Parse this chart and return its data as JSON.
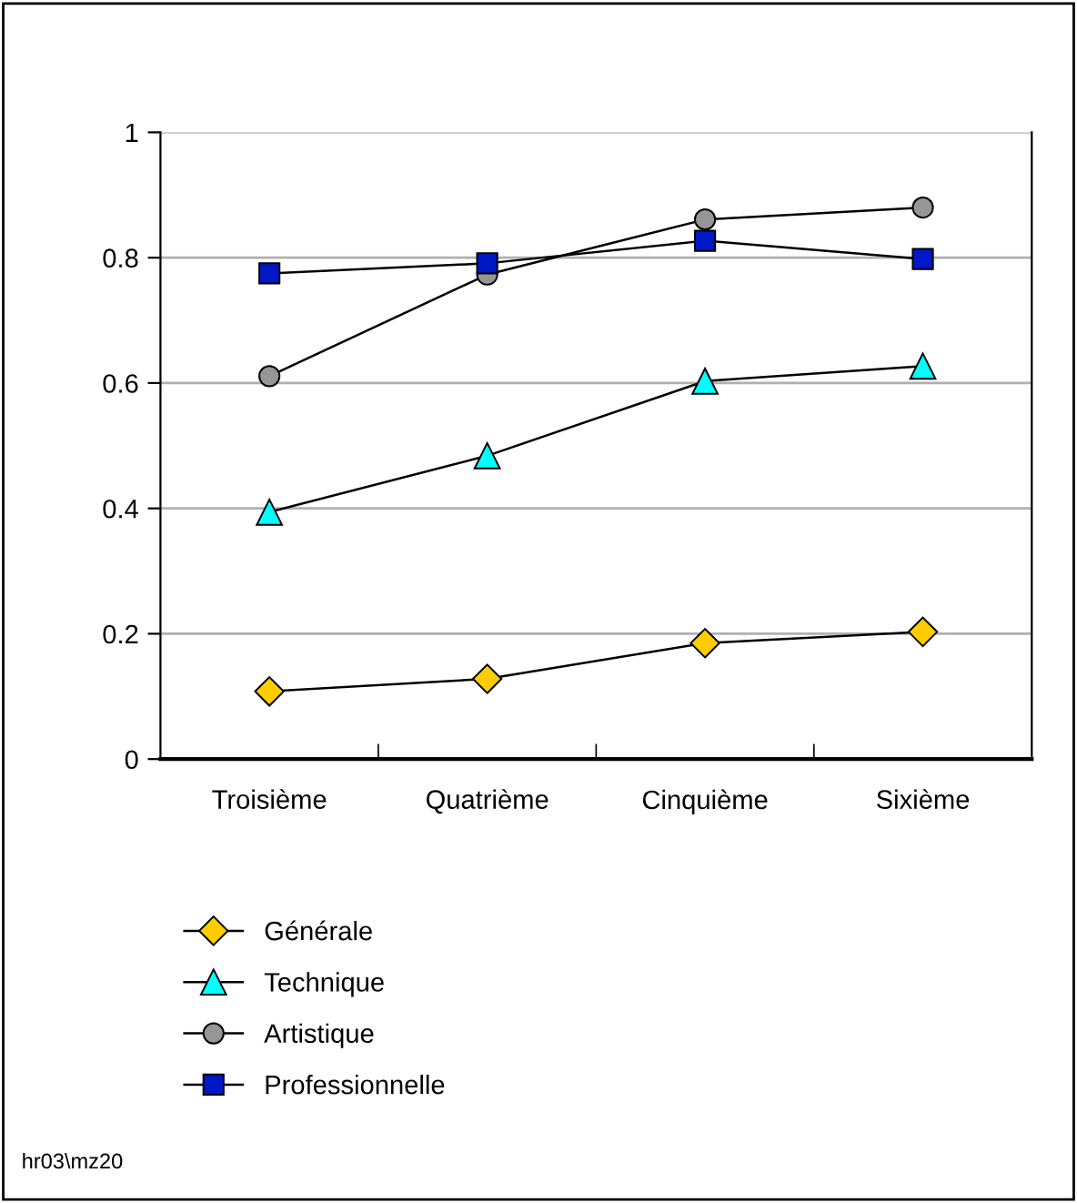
{
  "chart_data": {
    "type": "line",
    "categories": [
      "Troisième",
      "Quatrième",
      "Cinquième",
      "Sixième"
    ],
    "series": [
      {
        "name": "Générale",
        "color": "#ffcc00",
        "marker": "diamond",
        "values": [
          0.108,
          0.128,
          0.185,
          0.203
        ]
      },
      {
        "name": "Technique",
        "color": "#00ffff",
        "marker": "triangle",
        "values": [
          0.394,
          0.484,
          0.603,
          0.627
        ]
      },
      {
        "name": "Artistique",
        "color": "#969696",
        "marker": "circle",
        "values": [
          0.611,
          0.773,
          0.861,
          0.88
        ]
      },
      {
        "name": "Professionnelle",
        "color": "#0018c8",
        "marker": "square",
        "values": [
          0.775,
          0.791,
          0.827,
          0.798
        ]
      }
    ],
    "ylim": [
      0,
      1
    ],
    "yticks": [
      0,
      0.2,
      0.4,
      0.6,
      0.8,
      1
    ],
    "grid": "y",
    "legend": "bottom",
    "line_style": "solid",
    "annotations": [
      "hr03\\mz20"
    ]
  }
}
